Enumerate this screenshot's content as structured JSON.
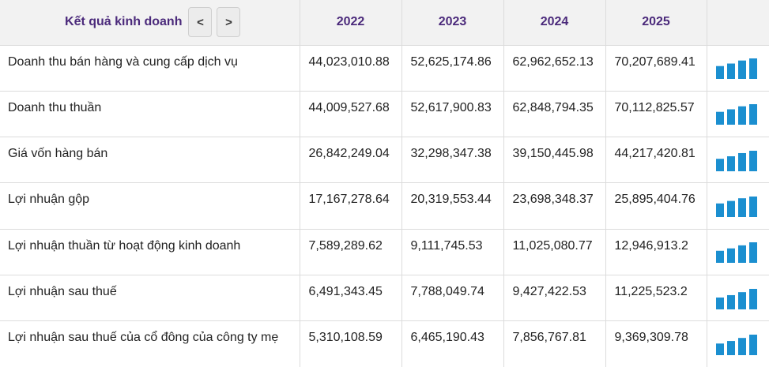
{
  "header": {
    "title": "Kết quả kinh doanh",
    "prev_label": "<",
    "next_label": ">",
    "years": [
      "2022",
      "2023",
      "2024",
      "2025"
    ]
  },
  "colors": {
    "header_text": "#4b2a7b",
    "bar": "#1b8fd0",
    "header_bg": "#f2f2f2"
  },
  "rows": [
    {
      "label": "Doanh thu bán hàng và cung cấp dịch vụ",
      "values": [
        "44,023,010.88",
        "52,625,174.86",
        "62,962,652.13",
        "70,207,689.41"
      ],
      "series": [
        44023010.88,
        52625174.86,
        62962652.13,
        70207689.41
      ]
    },
    {
      "label": "Doanh thu thuần",
      "values": [
        "44,009,527.68",
        "52,617,900.83",
        "62,848,794.35",
        "70,112,825.57"
      ],
      "series": [
        44009527.68,
        52617900.83,
        62848794.35,
        70112825.57
      ]
    },
    {
      "label": "Giá vốn hàng bán",
      "values": [
        "26,842,249.04",
        "32,298,347.38",
        "39,150,445.98",
        "44,217,420.81"
      ],
      "series": [
        26842249.04,
        32298347.38,
        39150445.98,
        44217420.81
      ]
    },
    {
      "label": "Lợi nhuận gộp",
      "values": [
        "17,167,278.64",
        "20,319,553.44",
        "23,698,348.37",
        "25,895,404.76"
      ],
      "series": [
        17167278.64,
        20319553.44,
        23698348.37,
        25895404.76
      ]
    },
    {
      "label": "Lợi nhuận thuần từ hoạt động kinh doanh",
      "values": [
        "7,589,289.62",
        "9,111,745.53",
        "11,025,080.77",
        "12,946,913.2"
      ],
      "series": [
        7589289.62,
        9111745.53,
        11025080.77,
        12946913.2
      ]
    },
    {
      "label": "Lợi nhuận sau thuế",
      "values": [
        "6,491,343.45",
        "7,788,049.74",
        "9,427,422.53",
        "11,225,523.2"
      ],
      "series": [
        6491343.45,
        7788049.74,
        9427422.53,
        11225523.2
      ]
    },
    {
      "label": "Lợi nhuận sau thuế của cổ đông của công ty mẹ",
      "values": [
        "5,310,108.59",
        "6,465,190.43",
        "7,856,767.81",
        "9,369,309.78"
      ],
      "series": [
        5310108.59,
        6465190.43,
        7856767.81,
        9369309.78
      ]
    }
  ]
}
